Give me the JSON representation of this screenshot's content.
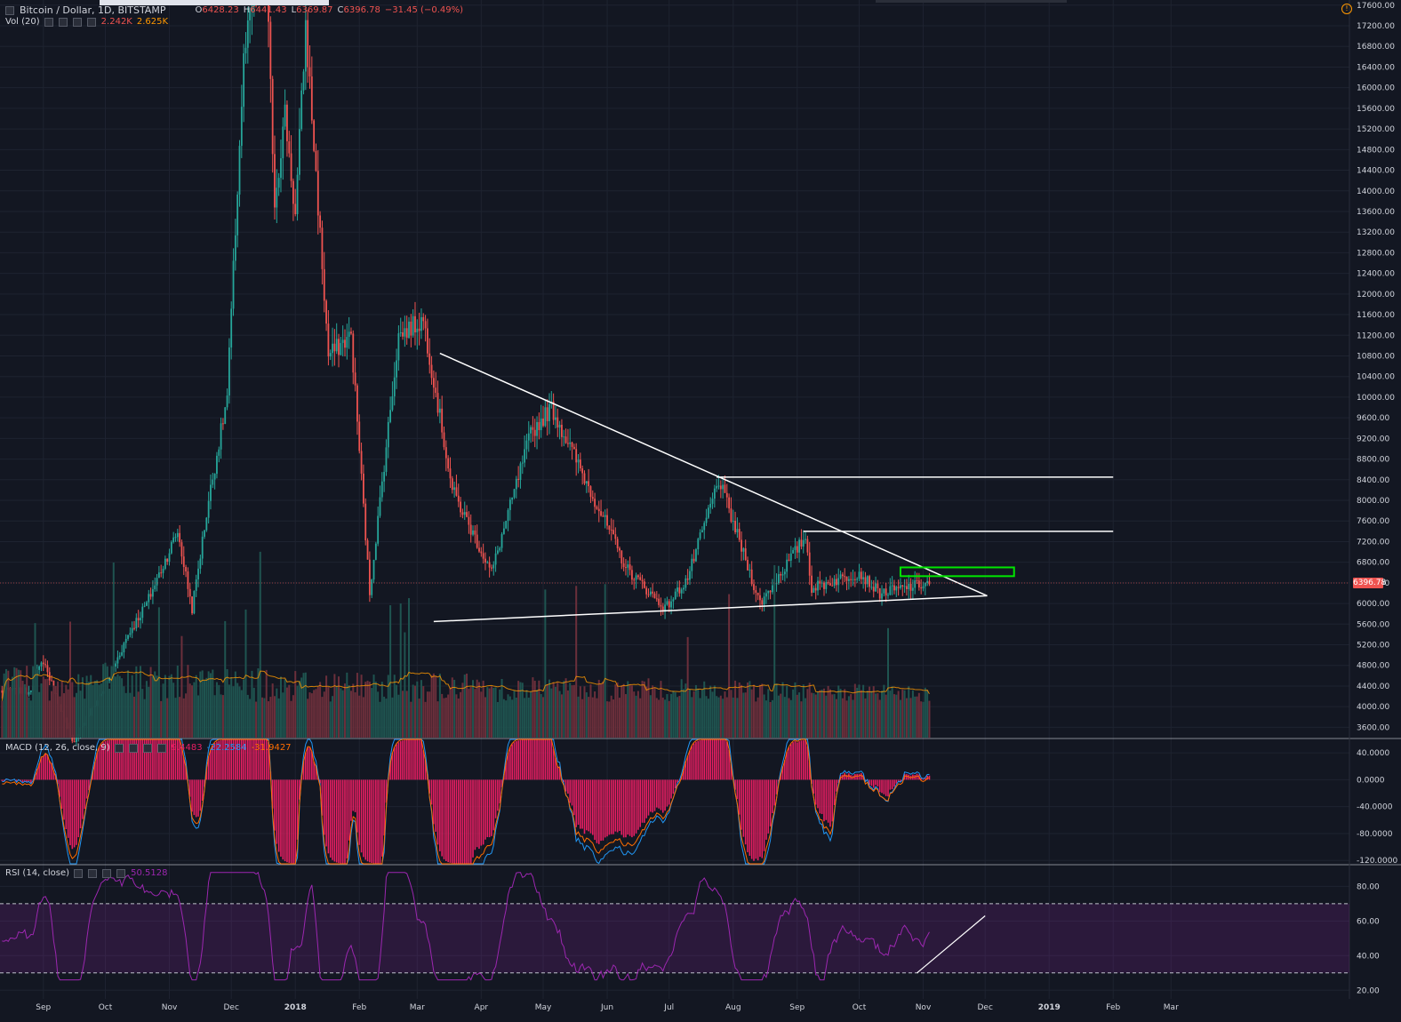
{
  "header": {
    "symbol": "Bitcoin / Dollar, 1D, BITSTAMP",
    "open_label": "O",
    "open": "6428.23",
    "high_label": "H",
    "high": "6441.43",
    "low_label": "L",
    "low": "6369.87",
    "close_label": "C",
    "close": "6396.78",
    "change": "−31.45 (−0.49%)"
  },
  "vol_legend": {
    "label": "Vol (20)",
    "v1": "2.242K",
    "v2": "2.625K"
  },
  "macd_legend": {
    "label": "MACD (12, 26, close, 9)",
    "v1": "9.4483",
    "v2": "-22.2584",
    "v3": "-31.9427"
  },
  "rsi_legend": {
    "label": "RSI (14, close)",
    "v1": "50.5128"
  },
  "last_price_label": "6396.78",
  "colors": {
    "background": "#131722",
    "grid": "#1e2330",
    "up": "#26a69a",
    "down": "#ef5350",
    "vol_up": "#1f5450",
    "vol_down": "#6b2f3b",
    "macd_line": "#2196f3",
    "signal_line": "#ff6d00",
    "histogram": "#e91e63",
    "rsi": "#9c27b0",
    "drawing": "#ffffff",
    "box": "#00e600"
  },
  "chart_data": {
    "type": "candlestick",
    "title": "Bitcoin / Dollar, 1D, BITSTAMP",
    "x_ticks": [
      "Sep",
      "Oct",
      "Nov",
      "Dec",
      "2018",
      "Feb",
      "Mar",
      "Apr",
      "May",
      "Jun",
      "Jul",
      "Aug",
      "Sep",
      "Oct",
      "Nov",
      "Dec",
      "2019",
      "Feb",
      "Mar"
    ],
    "y_ticks": [
      "17600.00",
      "17200.00",
      "16800.00",
      "16400.00",
      "16000.00",
      "15600.00",
      "15200.00",
      "14800.00",
      "14400.00",
      "14000.00",
      "13600.00",
      "13200.00",
      "12800.00",
      "12400.00",
      "12000.00",
      "11600.00",
      "11200.00",
      "10800.00",
      "10400.00",
      "10000.00",
      "9600.00",
      "9200.00",
      "8800.00",
      "8400.00",
      "8000.00",
      "7600.00",
      "7200.00",
      "6800.00",
      "6400.00",
      "6000.00",
      "5600.00",
      "5200.00",
      "4800.00",
      "4400.00",
      "4000.00",
      "3600.00"
    ],
    "y_range": [
      3400,
      17700
    ],
    "price_path": [
      {
        "d": "2017-08-25",
        "p": 4300
      },
      {
        "d": "2017-09-01",
        "p": 4900
      },
      {
        "d": "2017-09-15",
        "p": 3300
      },
      {
        "d": "2017-10-01",
        "p": 4400
      },
      {
        "d": "2017-10-12",
        "p": 5400
      },
      {
        "d": "2017-10-21",
        "p": 6000
      },
      {
        "d": "2017-11-05",
        "p": 7400
      },
      {
        "d": "2017-11-12",
        "p": 5900
      },
      {
        "d": "2017-11-20",
        "p": 8000
      },
      {
        "d": "2017-11-29",
        "p": 10000
      },
      {
        "d": "2017-12-07",
        "p": 16500
      },
      {
        "d": "2017-12-17",
        "p": 19200
      },
      {
        "d": "2017-12-22",
        "p": 13800
      },
      {
        "d": "2017-12-27",
        "p": 15500
      },
      {
        "d": "2018-01-01",
        "p": 13500
      },
      {
        "d": "2018-01-06",
        "p": 17200
      },
      {
        "d": "2018-01-17",
        "p": 10800
      },
      {
        "d": "2018-01-28",
        "p": 11200
      },
      {
        "d": "2018-02-06",
        "p": 6200
      },
      {
        "d": "2018-02-20",
        "p": 11200
      },
      {
        "d": "2018-03-04",
        "p": 11500
      },
      {
        "d": "2018-03-18",
        "p": 8200
      },
      {
        "d": "2018-04-06",
        "p": 6600
      },
      {
        "d": "2018-04-25",
        "p": 9300
      },
      {
        "d": "2018-05-05",
        "p": 9800
      },
      {
        "d": "2018-06-01",
        "p": 7500
      },
      {
        "d": "2018-06-10",
        "p": 6700
      },
      {
        "d": "2018-06-29",
        "p": 5900
      },
      {
        "d": "2018-07-10",
        "p": 6500
      },
      {
        "d": "2018-07-25",
        "p": 8400
      },
      {
        "d": "2018-08-14",
        "p": 6000
      },
      {
        "d": "2018-09-05",
        "p": 7300
      },
      {
        "d": "2018-09-08",
        "p": 6300
      },
      {
        "d": "2018-10-01",
        "p": 6600
      },
      {
        "d": "2018-10-11",
        "p": 6200
      },
      {
        "d": "2018-11-04",
        "p": 6400
      }
    ],
    "annotations": {
      "descending_trendline": [
        {
          "d": "2018-03-12",
          "p": 10850
        },
        {
          "d": "2018-12-02",
          "p": 6150
        }
      ],
      "ascending_trendline": [
        {
          "d": "2018-03-09",
          "p": 5650
        },
        {
          "d": "2018-12-02",
          "p": 6150
        }
      ],
      "resistance_1": [
        {
          "d": "2018-07-24",
          "p": 8450
        },
        {
          "d": "2019-02-01",
          "p": 8450
        }
      ],
      "resistance_2": [
        {
          "d": "2018-09-04",
          "p": 7400
        },
        {
          "d": "2019-02-01",
          "p": 7400
        }
      ],
      "green_box": {
        "from": "2018-10-21",
        "to": "2018-12-15",
        "low": 6530,
        "high": 6700
      }
    },
    "macd": {
      "y_ticks": [
        "40.0000",
        "0.0000",
        "-40.0000",
        "-80.0000",
        "-120.0000"
      ],
      "y_range": [
        -125,
        60
      ]
    },
    "rsi": {
      "y_ticks": [
        "80.00",
        "60.00",
        "40.00",
        "20.00"
      ],
      "y_range": [
        15,
        92
      ],
      "bands": [
        30,
        70
      ]
    }
  }
}
